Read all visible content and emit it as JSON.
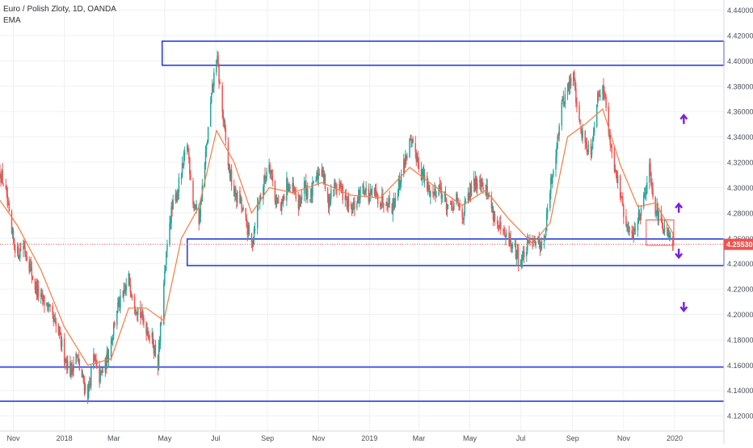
{
  "chart_data": {
    "type": "candlestick",
    "title": "Euro / Polish Zloty, 1D, OANDA",
    "indicator": "EMA",
    "y_axis": {
      "position": "right",
      "ylim": [
        4.108,
        4.448
      ],
      "ticks": [
        "4.44000",
        "4.42000",
        "4.40000",
        "4.38000",
        "4.36000",
        "4.34000",
        "4.32000",
        "4.30000",
        "4.28000",
        "4.26000",
        "4.24000",
        "4.22000",
        "4.20000",
        "4.18000",
        "4.16000",
        "4.14000",
        "4.12000"
      ]
    },
    "x_axis": {
      "range": [
        "2017-10-16",
        "2020-02-29"
      ],
      "ticks": [
        {
          "date": "2017-11-01",
          "label": "Nov"
        },
        {
          "date": "2018-01-01",
          "label": "2018"
        },
        {
          "date": "2018-03-01",
          "label": "Mar"
        },
        {
          "date": "2018-05-01",
          "label": "May"
        },
        {
          "date": "2018-07-01",
          "label": "Jul"
        },
        {
          "date": "2018-09-01",
          "label": "Sep"
        },
        {
          "date": "2018-11-01",
          "label": "Nov"
        },
        {
          "date": "2019-01-01",
          "label": "2019"
        },
        {
          "date": "2019-03-01",
          "label": "Mar"
        },
        {
          "date": "2019-05-01",
          "label": "May"
        },
        {
          "date": "2019-07-01",
          "label": "Jul"
        },
        {
          "date": "2019-09-01",
          "label": "Sep"
        },
        {
          "date": "2019-11-01",
          "label": "Nov"
        },
        {
          "date": "2020-01-01",
          "label": "2020"
        }
      ]
    },
    "price_path": [
      [
        "2017-10-16",
        4.312
      ],
      [
        "2017-10-22",
        4.3
      ],
      [
        "2017-10-30",
        4.262
      ],
      [
        "2017-11-06",
        4.248
      ],
      [
        "2017-11-13",
        4.255
      ],
      [
        "2017-11-20",
        4.24
      ],
      [
        "2017-11-27",
        4.222
      ],
      [
        "2017-12-04",
        4.212
      ],
      [
        "2017-12-11",
        4.208
      ],
      [
        "2017-12-18",
        4.195
      ],
      [
        "2017-12-25",
        4.185
      ],
      [
        "2018-01-01",
        4.168
      ],
      [
        "2018-01-08",
        4.155
      ],
      [
        "2018-01-15",
        4.168
      ],
      [
        "2018-01-22",
        4.15
      ],
      [
        "2018-01-29",
        4.138
      ],
      [
        "2018-02-05",
        4.165
      ],
      [
        "2018-02-12",
        4.15
      ],
      [
        "2018-02-19",
        4.16
      ],
      [
        "2018-02-26",
        4.18
      ],
      [
        "2018-03-05",
        4.205
      ],
      [
        "2018-03-12",
        4.212
      ],
      [
        "2018-03-19",
        4.228
      ],
      [
        "2018-03-26",
        4.21
      ],
      [
        "2018-04-02",
        4.2
      ],
      [
        "2018-04-09",
        4.19
      ],
      [
        "2018-04-16",
        4.18
      ],
      [
        "2018-04-23",
        4.162
      ],
      [
        "2018-04-30",
        4.222
      ],
      [
        "2018-05-07",
        4.275
      ],
      [
        "2018-05-14",
        4.292
      ],
      [
        "2018-05-21",
        4.31
      ],
      [
        "2018-05-28",
        4.335
      ],
      [
        "2018-06-04",
        4.29
      ],
      [
        "2018-06-11",
        4.275
      ],
      [
        "2018-06-18",
        4.318
      ],
      [
        "2018-06-25",
        4.365
      ],
      [
        "2018-07-02",
        4.405
      ],
      [
        "2018-07-09",
        4.36
      ],
      [
        "2018-07-16",
        4.318
      ],
      [
        "2018-07-23",
        4.295
      ],
      [
        "2018-07-30",
        4.29
      ],
      [
        "2018-08-06",
        4.272
      ],
      [
        "2018-08-13",
        4.255
      ],
      [
        "2018-08-20",
        4.285
      ],
      [
        "2018-08-27",
        4.302
      ],
      [
        "2018-09-03",
        4.322
      ],
      [
        "2018-09-10",
        4.292
      ],
      [
        "2018-09-17",
        4.282
      ],
      [
        "2018-09-24",
        4.302
      ],
      [
        "2018-10-01",
        4.298
      ],
      [
        "2018-10-08",
        4.286
      ],
      [
        "2018-10-15",
        4.302
      ],
      [
        "2018-10-22",
        4.292
      ],
      [
        "2018-10-29",
        4.306
      ],
      [
        "2018-11-05",
        4.318
      ],
      [
        "2018-11-12",
        4.288
      ],
      [
        "2018-11-19",
        4.3
      ],
      [
        "2018-11-26",
        4.302
      ],
      [
        "2018-12-03",
        4.29
      ],
      [
        "2018-12-10",
        4.28
      ],
      [
        "2018-12-17",
        4.29
      ],
      [
        "2018-12-24",
        4.302
      ],
      [
        "2018-12-31",
        4.292
      ],
      [
        "2019-01-07",
        4.295
      ],
      [
        "2019-01-14",
        4.29
      ],
      [
        "2019-01-21",
        4.292
      ],
      [
        "2019-01-28",
        4.285
      ],
      [
        "2019-02-04",
        4.3
      ],
      [
        "2019-02-11",
        4.318
      ],
      [
        "2019-02-18",
        4.335
      ],
      [
        "2019-02-25",
        4.328
      ],
      [
        "2019-03-04",
        4.312
      ],
      [
        "2019-03-11",
        4.3
      ],
      [
        "2019-03-18",
        4.295
      ],
      [
        "2019-03-25",
        4.302
      ],
      [
        "2019-04-01",
        4.29
      ],
      [
        "2019-04-08",
        4.282
      ],
      [
        "2019-04-15",
        4.29
      ],
      [
        "2019-04-22",
        4.278
      ],
      [
        "2019-04-29",
        4.292
      ],
      [
        "2019-05-06",
        4.302
      ],
      [
        "2019-05-13",
        4.308
      ],
      [
        "2019-05-20",
        4.3
      ],
      [
        "2019-05-27",
        4.285
      ],
      [
        "2019-06-03",
        4.27
      ],
      [
        "2019-06-10",
        4.262
      ],
      [
        "2019-06-17",
        4.258
      ],
      [
        "2019-06-24",
        4.25
      ],
      [
        "2019-07-01",
        4.242
      ],
      [
        "2019-07-08",
        4.252
      ],
      [
        "2019-07-15",
        4.262
      ],
      [
        "2019-07-22",
        4.256
      ],
      [
        "2019-07-29",
        4.258
      ],
      [
        "2019-08-05",
        4.298
      ],
      [
        "2019-08-12",
        4.33
      ],
      [
        "2019-08-19",
        4.365
      ],
      [
        "2019-08-26",
        4.378
      ],
      [
        "2019-09-02",
        4.388
      ],
      [
        "2019-09-09",
        4.35
      ],
      [
        "2019-09-16",
        4.335
      ],
      [
        "2019-09-23",
        4.33
      ],
      [
        "2019-09-30",
        4.368
      ],
      [
        "2019-10-07",
        4.385
      ],
      [
        "2019-10-14",
        4.345
      ],
      [
        "2019-10-21",
        4.318
      ],
      [
        "2019-10-28",
        4.295
      ],
      [
        "2019-11-04",
        4.268
      ],
      [
        "2019-11-11",
        4.262
      ],
      [
        "2019-11-18",
        4.275
      ],
      [
        "2019-11-25",
        4.292
      ],
      [
        "2019-12-02",
        4.315
      ],
      [
        "2019-12-09",
        4.285
      ],
      [
        "2019-12-16",
        4.27
      ],
      [
        "2019-12-23",
        4.262
      ],
      [
        "2019-12-30",
        4.255
      ]
    ],
    "ema_path": [
      [
        "2017-10-16",
        4.29
      ],
      [
        "2017-11-06",
        4.27
      ],
      [
        "2017-12-04",
        4.235
      ],
      [
        "2018-01-01",
        4.19
      ],
      [
        "2018-01-29",
        4.16
      ],
      [
        "2018-02-26",
        4.165
      ],
      [
        "2018-03-19",
        4.205
      ],
      [
        "2018-04-09",
        4.205
      ],
      [
        "2018-04-30",
        4.195
      ],
      [
        "2018-05-21",
        4.26
      ],
      [
        "2018-06-11",
        4.285
      ],
      [
        "2018-07-02",
        4.345
      ],
      [
        "2018-07-23",
        4.32
      ],
      [
        "2018-08-13",
        4.28
      ],
      [
        "2018-09-03",
        4.3
      ],
      [
        "2018-10-01",
        4.296
      ],
      [
        "2018-11-05",
        4.304
      ],
      [
        "2018-12-10",
        4.294
      ],
      [
        "2019-01-14",
        4.292
      ],
      [
        "2019-02-18",
        4.316
      ],
      [
        "2019-03-18",
        4.302
      ],
      [
        "2019-04-22",
        4.286
      ],
      [
        "2019-05-20",
        4.298
      ],
      [
        "2019-06-17",
        4.275
      ],
      [
        "2019-07-15",
        4.256
      ],
      [
        "2019-08-05",
        4.272
      ],
      [
        "2019-08-26",
        4.34
      ],
      [
        "2019-09-16",
        4.35
      ],
      [
        "2019-10-07",
        4.362
      ],
      [
        "2019-10-28",
        4.318
      ],
      [
        "2019-11-18",
        4.285
      ],
      [
        "2019-12-09",
        4.288
      ],
      [
        "2019-12-30",
        4.264
      ]
    ],
    "last_price": 4.2553,
    "last_price_label": "4.25530",
    "colors": {
      "up": "#26a69a",
      "down": "#ef5350",
      "ema": "#f57c42",
      "zones": "#2a3fe0",
      "arrows": "#7b1fe0",
      "last_price": "#ef5350",
      "grid": "#eef0f3"
    },
    "annotations": {
      "zones": [
        {
          "start": "2018-04-28",
          "end": "2020-02-29",
          "top": 4.4155,
          "bottom": 4.3965
        },
        {
          "start": "2018-05-28",
          "end": "2020-02-29",
          "top": 4.2595,
          "bottom": 4.2385
        }
      ],
      "hlines": [
        4.1585,
        4.1315
      ],
      "small_box": {
        "start": "2019-11-28",
        "end": "2019-12-31",
        "top": 4.2745,
        "bottom": 4.2545
      },
      "arrows": [
        {
          "date": "2020-01-12",
          "price": 4.354,
          "dir": "up"
        },
        {
          "date": "2020-01-06",
          "price": 4.284,
          "dir": "up"
        },
        {
          "date": "2020-01-06",
          "price": 4.248,
          "dir": "down"
        },
        {
          "date": "2020-01-12",
          "price": 4.206,
          "dir": "down"
        }
      ]
    }
  }
}
